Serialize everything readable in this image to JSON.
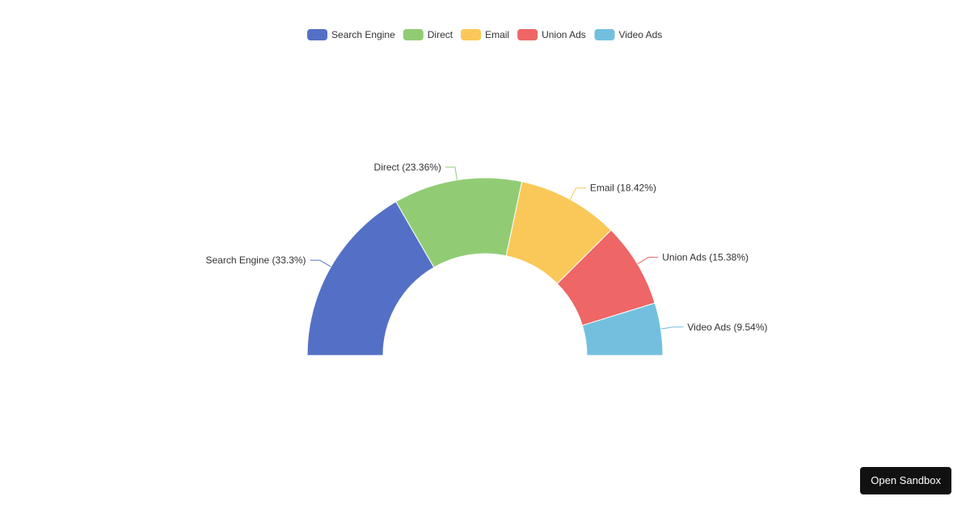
{
  "chart_data": {
    "type": "pie",
    "variant": "half-donut",
    "title": "",
    "categories": [
      "Search Engine",
      "Direct",
      "Email",
      "Union Ads",
      "Video Ads"
    ],
    "values": [
      33.3,
      23.36,
      18.42,
      15.38,
      9.54
    ],
    "labels": [
      "Search Engine (33.3%)",
      "Direct (23.36%)",
      "Email (18.42%)",
      "Union Ads (15.38%)",
      "Video Ads (9.54%)"
    ],
    "colors": [
      "#5470c6",
      "#91cc75",
      "#fac858",
      "#ee6666",
      "#73c0de"
    ],
    "legend": "top-center"
  },
  "sandbox": {
    "label": "Open Sandbox"
  }
}
